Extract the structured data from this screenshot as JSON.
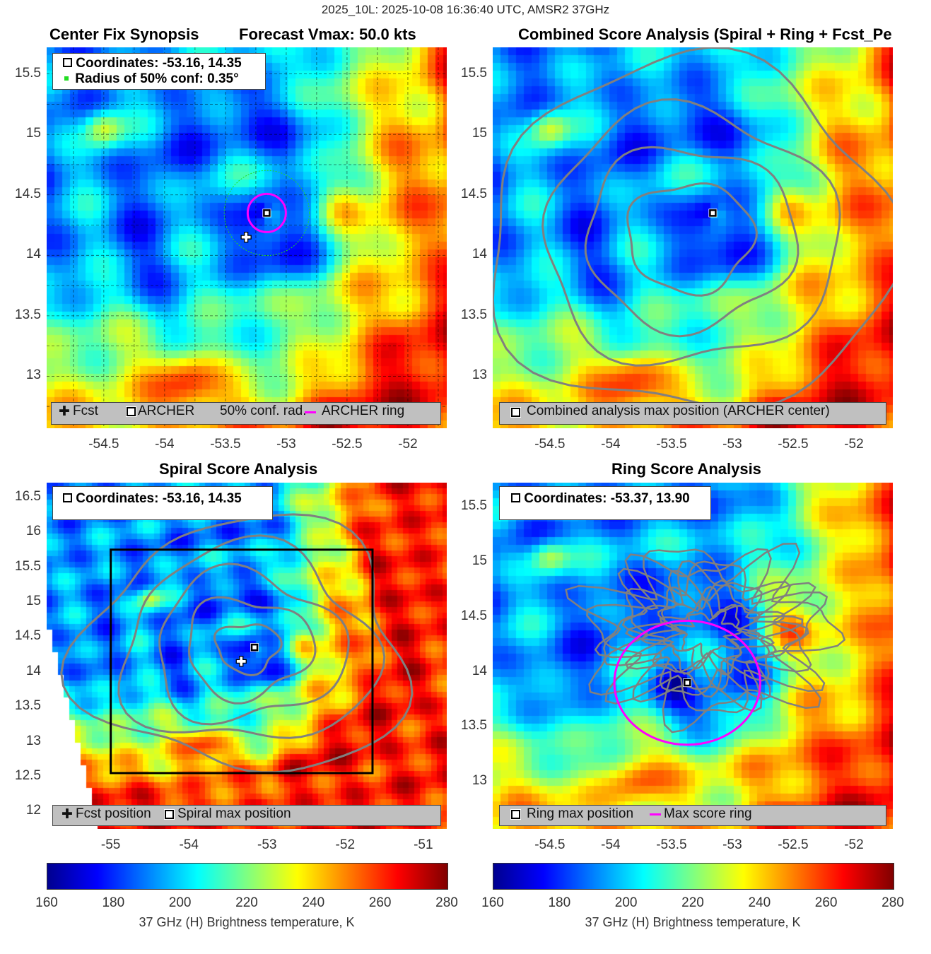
{
  "suptitle": "2025_10L: 2025-10-08 16:36:40 UTC, AMSR2 37GHz",
  "colormap": [
    "#00008f",
    "#0000ff",
    "#0080ff",
    "#00ffff",
    "#80ff80",
    "#ffff00",
    "#ff8000",
    "#ff0000",
    "#800000"
  ],
  "colorbar": {
    "ticks": [
      "160",
      "180",
      "200",
      "220",
      "240",
      "260",
      "280"
    ],
    "label": "37 GHz (H) Brightness temperature, K",
    "range": [
      160,
      280
    ]
  },
  "panels": {
    "synopsis": {
      "title_left": "Center Fix Synopsis",
      "title_right": "Forecast Vmax: 50.0 kts",
      "legend_line1": "Coordinates: -53.16, 14.35",
      "legend_line2": "Radius of 50% conf: 0.35°",
      "bottom_fcst": "Fcst",
      "bottom_archer": "ARCHER",
      "bottom_conf": "50% conf. rad.",
      "bottom_ring": "ARCHER ring",
      "x_ticks": [
        "-54.5",
        "-54",
        "-53.5",
        "-53",
        "-52.5",
        "-52"
      ],
      "y_ticks": [
        "15.5",
        "15",
        "14.5",
        "14",
        "13.5",
        "13"
      ]
    },
    "combined": {
      "title": "Combined Score Analysis (Spiral + Ring + Fcst_Pe",
      "bottom_label": "Combined analysis max position (ARCHER center)",
      "x_ticks": [
        "-54.5",
        "-54",
        "-53.5",
        "-53",
        "-52.5",
        "-52"
      ],
      "y_ticks": [
        "15.5",
        "15",
        "14.5",
        "14",
        "13.5",
        "13"
      ]
    },
    "spiral": {
      "title": "Spiral Score Analysis",
      "legend_line1": "Coordinates: -53.16, 14.35",
      "bottom_fcst": "Fcst position",
      "bottom_spiral": "Spiral max position",
      "x_ticks": [
        "-55",
        "-54",
        "-53",
        "-52",
        "-51"
      ],
      "y_ticks": [
        "16.5",
        "16",
        "15.5",
        "15",
        "14.5",
        "14",
        "13.5",
        "13",
        "12.5",
        "12"
      ]
    },
    "ring": {
      "title": "Ring Score Analysis",
      "legend_line1": "Coordinates: -53.37, 13.90",
      "bottom_ring_max": "Ring max position",
      "bottom_max_ring": "Max score ring",
      "x_ticks": [
        "-54.5",
        "-54",
        "-53.5",
        "-53",
        "-52.5",
        "-52"
      ],
      "y_ticks": [
        "15.5",
        "15",
        "14.5",
        "14",
        "13.5",
        "13"
      ]
    }
  },
  "chart_data": [
    {
      "type": "heatmap",
      "title": "Center Fix Synopsis",
      "subtitle": "Forecast Vmax: 50.0 kts",
      "xlim": [
        -54.97,
        -51.68
      ],
      "ylim": [
        12.57,
        15.72
      ],
      "archer_center": [
        -53.16,
        14.35
      ],
      "forecast_position": [
        -53.33,
        14.15
      ],
      "conf_radius_deg": 0.35,
      "value_range": [
        160,
        280
      ],
      "grid": true
    },
    {
      "type": "heatmap",
      "title": "Combined Score Analysis (Spiral + Ring + Fcst_Pe",
      "xlim": [
        -54.97,
        -51.68
      ],
      "ylim": [
        12.57,
        15.72
      ],
      "archer_center": [
        -53.16,
        14.35
      ],
      "value_range": [
        160,
        280
      ]
    },
    {
      "type": "heatmap",
      "title": "Spiral Score Analysis",
      "xlim": [
        -55.82,
        -50.7
      ],
      "ylim": [
        11.75,
        16.71
      ],
      "spiral_max": [
        -53.16,
        14.35
      ],
      "forecast_position": [
        -53.33,
        14.15
      ],
      "search_box": {
        "lon": [
          -55.0,
          -51.65
        ],
        "lat": [
          12.55,
          15.75
        ]
      },
      "value_range": [
        160,
        280
      ]
    },
    {
      "type": "heatmap",
      "title": "Ring Score Analysis",
      "xlim": [
        -54.97,
        -51.68
      ],
      "ylim": [
        12.57,
        15.72
      ],
      "ring_max": [
        -53.37,
        13.9
      ],
      "ring_radius_deg": 0.6,
      "value_range": [
        160,
        280
      ]
    }
  ]
}
